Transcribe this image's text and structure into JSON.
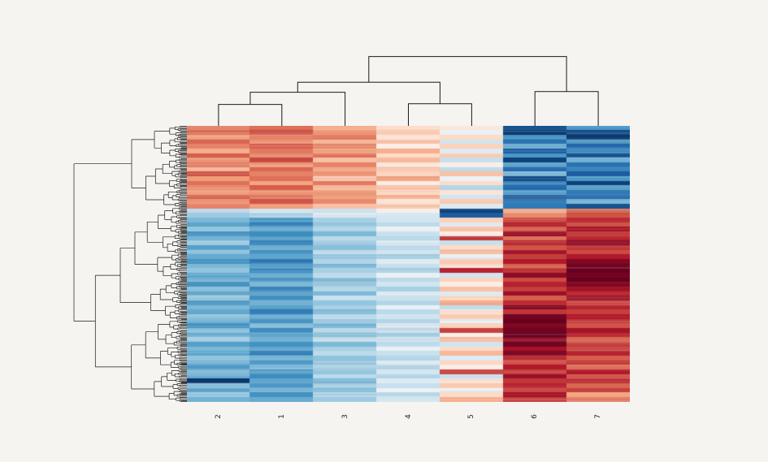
{
  "figure": {
    "background": "#f5f4f1"
  },
  "chart_data": {
    "type": "heatmap",
    "subtype": "clustermap",
    "columns": [
      "2",
      "1",
      "3",
      "4",
      "5",
      "6",
      "7"
    ],
    "vmin": -3,
    "vmax": 3,
    "line_color": "#1a1a1a",
    "colormap": {
      "name": "RdBu_r",
      "stops": [
        {
          "t": 0.0,
          "c": "#053061"
        },
        {
          "t": 0.1,
          "c": "#2166ac"
        },
        {
          "t": 0.22,
          "c": "#4393c3"
        },
        {
          "t": 0.35,
          "c": "#92c5de"
        },
        {
          "t": 0.45,
          "c": "#d1e5f0"
        },
        {
          "t": 0.5,
          "c": "#f7f7f7"
        },
        {
          "t": 0.55,
          "c": "#fddbc7"
        },
        {
          "t": 0.65,
          "c": "#f4a582"
        },
        {
          "t": 0.78,
          "c": "#d6604d"
        },
        {
          "t": 0.9,
          "c": "#b2182b"
        },
        {
          "t": 1.0,
          "c": "#67001f"
        }
      ]
    },
    "col_linkage": [
      {
        "merge": [
          "2",
          "1"
        ],
        "height": 0.3
      },
      {
        "merge": [
          "#0",
          "3"
        ],
        "height": 0.47
      },
      {
        "merge": [
          "4",
          "5"
        ],
        "height": 0.31
      },
      {
        "merge": [
          "#1",
          "#2"
        ],
        "height": 0.61
      },
      {
        "merge": [
          "6",
          "7"
        ],
        "height": 0.48
      },
      {
        "merge": [
          "#3",
          "#4"
        ],
        "height": 0.97
      }
    ],
    "row_dendrogram": {
      "orientation": "left",
      "top_cluster_fraction": 0.295,
      "approx_leaves": 200
    },
    "values": [
      [
        1.2,
        1.5,
        0.8,
        0.3,
        0.2,
        -2.6,
        -1.6
      ],
      [
        1.5,
        1.8,
        1.1,
        0.5,
        -0.1,
        -2.9,
        -2.7
      ],
      [
        0.9,
        1.3,
        1.4,
        0.2,
        0.3,
        -1.8,
        -2.9
      ],
      [
        1.6,
        1.1,
        0.7,
        0.6,
        -0.3,
        -2.2,
        -1.5
      ],
      [
        1.3,
        1.7,
        1.2,
        0.1,
        0.4,
        -1.2,
        -2.4
      ],
      [
        0.8,
        1.4,
        0.9,
        0.8,
        -0.2,
        -2.5,
        -1.8
      ],
      [
        1.7,
        1.2,
        1.5,
        0.3,
        0.5,
        -1.6,
        -2.6
      ],
      [
        1.1,
        1.9,
        0.6,
        0.7,
        -0.4,
        -2.8,
        -1.2
      ],
      [
        1.4,
        1.0,
        1.3,
        0.2,
        0.1,
        -1.4,
        -2.2
      ],
      [
        0.7,
        1.6,
        0.8,
        0.5,
        -0.5,
        -2.4,
        -1.9
      ],
      [
        1.8,
        1.3,
        1.1,
        0.4,
        0.6,
        -1.1,
        -2.5
      ],
      [
        1.0,
        1.5,
        0.5,
        0.9,
        -0.1,
        -2.7,
        -1.6
      ],
      [
        1.5,
        0.9,
        1.4,
        0.1,
        0.3,
        -1.9,
        -2.8
      ],
      [
        1.2,
        1.7,
        0.7,
        0.6,
        -0.6,
        -2.3,
        -1.4
      ],
      [
        0.9,
        1.1,
        1.0,
        0.3,
        0.2,
        -1.5,
        -2.1
      ],
      [
        1.6,
        1.4,
        0.9,
        0.8,
        -0.3,
        -2.6,
        -2.3
      ],
      [
        1.1,
        1.8,
        1.2,
        0.2,
        0.5,
        -2.0,
        -1.1
      ],
      [
        1.3,
        1.0,
        0.6,
        0.5,
        -0.2,
        -2.1,
        -2.6
      ],
      [
        -0.5,
        -0.3,
        -0.4,
        0.1,
        -2.8,
        0.8,
        1.5
      ],
      [
        -0.8,
        -0.6,
        -0.2,
        -0.3,
        -2.5,
        1.2,
        1.8
      ],
      [
        -1.1,
        -1.6,
        -0.7,
        -0.3,
        0.4,
        1.9,
        2.2
      ],
      [
        -1.4,
        -2.0,
        -0.9,
        -0.5,
        -0.2,
        2.3,
        1.8
      ],
      [
        -0.9,
        -1.3,
        -0.6,
        -0.1,
        0.6,
        1.7,
        2.5
      ],
      [
        -1.6,
        -1.8,
        -1.1,
        -0.4,
        0.1,
        2.6,
        2.0
      ],
      [
        -1.2,
        -1.5,
        -0.5,
        -0.6,
        2.1,
        1.5,
        2.3
      ],
      [
        -0.8,
        -1.9,
        -0.8,
        -0.2,
        -0.4,
        2.2,
        2.7
      ],
      [
        -1.5,
        -1.2,
        -1.0,
        -0.5,
        0.3,
        1.8,
        2.1
      ],
      [
        -1.0,
        -1.7,
        -0.4,
        -0.3,
        0.7,
        2.5,
        1.9
      ],
      [
        -1.3,
        -1.4,
        -0.9,
        -0.7,
        -0.1,
        2.0,
        2.4
      ],
      [
        -1.7,
        -2.1,
        -0.6,
        -0.2,
        0.5,
        2.4,
        2.8
      ],
      [
        -1.1,
        -1.5,
        -1.2,
        -0.4,
        0.2,
        1.6,
        2.9
      ],
      [
        -0.9,
        -1.8,
        -0.7,
        -0.6,
        2.3,
        2.1,
        3.0
      ],
      [
        -1.4,
        -1.3,
        -0.5,
        -0.1,
        -0.3,
        2.7,
        2.9
      ],
      [
        -1.2,
        -1.6,
        -1.0,
        -0.5,
        0.4,
        1.9,
        3.0
      ],
      [
        -1.6,
        -1.1,
        -0.8,
        -0.3,
        0.1,
        2.3,
        2.8
      ],
      [
        -1.0,
        -1.9,
        -0.6,
        -0.7,
        0.6,
        2.0,
        2.5
      ],
      [
        -1.3,
        -1.4,
        -1.1,
        -0.2,
        -0.2,
        2.6,
        2.2
      ],
      [
        -0.8,
        -1.7,
        -0.4,
        -0.4,
        0.3,
        1.7,
        2.6
      ],
      [
        -1.5,
        -1.2,
        -0.9,
        -0.6,
        0.8,
        2.2,
        1.9
      ],
      [
        -1.1,
        -1.5,
        -0.7,
        -0.1,
        -0.5,
        2.8,
        2.3
      ],
      [
        -1.4,
        -2.0,
        -1.0,
        -0.5,
        0.2,
        2.1,
        2.0
      ],
      [
        -0.9,
        -1.3,
        -0.5,
        -0.3,
        0.5,
        2.9,
        2.4
      ],
      [
        -1.2,
        -1.6,
        -0.8,
        -0.6,
        -0.1,
        3.0,
        2.1
      ],
      [
        -1.7,
        -1.1,
        -1.2,
        -0.2,
        0.4,
        2.8,
        1.8
      ],
      [
        -1.0,
        -1.8,
        -0.6,
        -0.4,
        2.0,
        2.9,
        2.5
      ],
      [
        -1.3,
        -1.4,
        -0.9,
        -0.7,
        0.1,
        3.0,
        2.2
      ],
      [
        -0.8,
        -1.2,
        -0.4,
        -0.3,
        0.6,
        2.7,
        1.6
      ],
      [
        -1.5,
        -1.7,
        -1.1,
        -0.5,
        -0.3,
        2.9,
        2.0
      ],
      [
        -1.1,
        -1.3,
        -0.7,
        -0.1,
        0.3,
        2.5,
        1.9
      ],
      [
        -1.4,
        -1.9,
        -0.5,
        -0.4,
        0.7,
        2.8,
        2.3
      ],
      [
        -0.9,
        -1.2,
        -1.0,
        -0.6,
        -0.2,
        2.2,
        1.7
      ],
      [
        -1.2,
        -1.6,
        -0.8,
        -0.2,
        0.4,
        1.8,
        2.1
      ],
      [
        -1.6,
        -1.1,
        -0.6,
        -0.5,
        0.1,
        2.4,
        1.5
      ],
      [
        -1.0,
        -1.5,
        -0.9,
        -0.3,
        1.9,
        2.0,
        2.4
      ],
      [
        -1.3,
        -1.8,
        -0.5,
        -0.6,
        -0.4,
        2.6,
        1.8
      ],
      [
        -2.9,
        -1.4,
        -1.1,
        -0.2,
        0.2,
        2.1,
        2.2
      ],
      [
        -1.1,
        -1.6,
        -0.7,
        -0.4,
        0.5,
        2.3,
        1.6
      ],
      [
        -1.4,
        -1.2,
        -1.0,
        -0.1,
        -0.1,
        1.9,
        2.0
      ],
      [
        -0.9,
        -1.7,
        -0.6,
        -0.5,
        0.3,
        2.5,
        0.9
      ],
      [
        -1.2,
        -1.3,
        -0.8,
        -0.3,
        0.8,
        2.0,
        1.4
      ]
    ]
  }
}
